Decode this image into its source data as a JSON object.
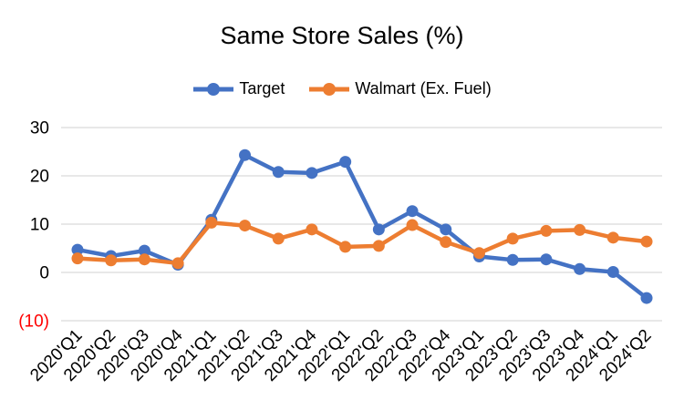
{
  "chart_data": {
    "type": "line",
    "title": "Same Store Sales (%)",
    "xlabel": "",
    "ylabel": "",
    "categories": [
      "2020'Q1",
      "2020'Q2",
      "2020'Q3",
      "2020'Q4",
      "2021'Q1",
      "2021'Q2",
      "2021'Q3",
      "2021'Q4",
      "2022'Q1",
      "2022'Q2",
      "2022'Q3",
      "2022'Q4",
      "2023'Q1",
      "2023'Q2",
      "2023'Q3",
      "2023'Q4",
      "2024'Q1",
      "2024'Q2"
    ],
    "series": [
      {
        "name": "Target",
        "color": "#4472C4",
        "values": [
          4.7,
          3.4,
          4.5,
          1.6,
          10.9,
          24.3,
          20.8,
          20.6,
          22.9,
          8.9,
          12.7,
          8.9,
          3.3,
          2.6,
          2.7,
          0.7,
          0.1,
          -5.3
        ]
      },
      {
        "name": "Walmart (Ex. Fuel)",
        "color": "#ED7D31",
        "values": [
          2.9,
          2.5,
          2.7,
          1.9,
          10.3,
          9.7,
          7.0,
          8.9,
          5.3,
          5.5,
          9.8,
          6.3,
          4.0,
          7.0,
          8.6,
          8.8,
          7.2,
          6.4
        ]
      }
    ],
    "ylim": [
      -10,
      30
    ],
    "y_ticks": [
      {
        "value": 30,
        "label": "30",
        "color": "#000000"
      },
      {
        "value": 20,
        "label": "20",
        "color": "#000000"
      },
      {
        "value": 10,
        "label": "10",
        "color": "#000000"
      },
      {
        "value": 0,
        "label": "0",
        "color": "#000000"
      },
      {
        "value": -10,
        "label": "(10)",
        "color": "#FF0000"
      }
    ],
    "grid": "horizontal",
    "gridline_color": "#D9D9D9",
    "legend_position": "top",
    "background": "#FFFFFF"
  }
}
